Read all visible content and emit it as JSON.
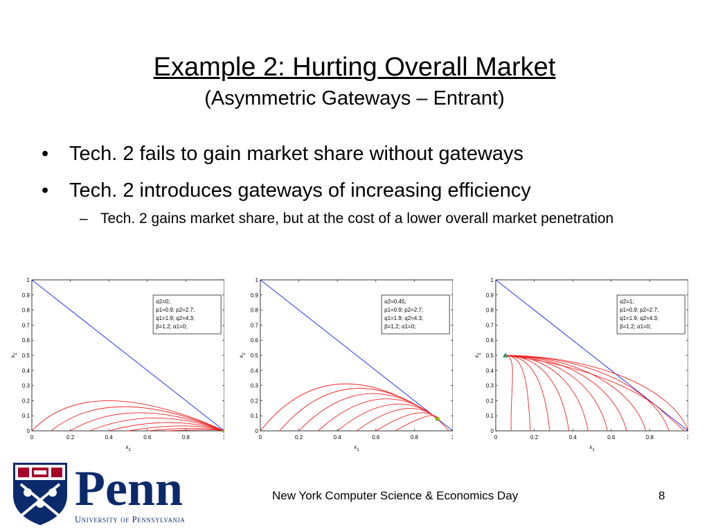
{
  "slide": {
    "title": "Example 2: Hurting Overall Market",
    "subtitle": "(Asymmetric Gateways – Entrant)",
    "bullets": [
      "Tech. 2 fails to gain market share without gateways",
      "Tech. 2 introduces gateways of increasing efficiency"
    ],
    "sub_bullet": "Tech. 2 gains market share, but at the cost of a lower overall market penetration",
    "bullet_mark": "•",
    "dash_mark": "–",
    "footer": "New York Computer Science & Economics Day",
    "page_number": "8"
  },
  "logo": {
    "wordmark": "Penn",
    "tagline": "University of Pennsylvania"
  },
  "chart_data": [
    {
      "type": "line",
      "xlabel": "x1",
      "ylabel": "x2",
      "xlim": [
        0,
        1
      ],
      "ylim": [
        0,
        1
      ],
      "xticks": [
        "0",
        "0.2",
        "0.4",
        "0.6",
        "0.8",
        "1"
      ],
      "yticks": [
        "0",
        "0.1",
        "0.2",
        "0.3",
        "0.4",
        "0.5",
        "0.6",
        "0.7",
        "0.8",
        "0.9",
        "1"
      ],
      "legend": [
        "α2=0;",
        "p1=0.9; p2=2.7;",
        "q1=1.9; q2=4.3;",
        "β=1.2; α1=0;"
      ],
      "boundary_line": [
        [
          0,
          1
        ],
        [
          1,
          0
        ]
      ],
      "equilibrium": [
        1.0,
        0.0
      ],
      "trajectories": [
        {
          "start": 0.0,
          "peak": [
            0.4,
            0.2
          ]
        },
        {
          "start": 0.1,
          "peak": [
            0.48,
            0.16
          ]
        },
        {
          "start": 0.2,
          "peak": [
            0.56,
            0.12
          ]
        },
        {
          "start": 0.3,
          "peak": [
            0.64,
            0.085
          ]
        },
        {
          "start": 0.4,
          "peak": [
            0.71,
            0.055
          ]
        },
        {
          "start": 0.5,
          "peak": [
            0.78,
            0.033
          ]
        },
        {
          "start": 0.6,
          "peak": [
            0.84,
            0.017
          ]
        },
        {
          "start": 0.7,
          "peak": [
            0.9,
            0.007
          ]
        }
      ]
    },
    {
      "type": "line",
      "xlabel": "x1",
      "ylabel": "x2",
      "xlim": [
        0,
        1
      ],
      "ylim": [
        0,
        1
      ],
      "xticks": [
        "0",
        "0.2",
        "0.4",
        "0.6",
        "0.8",
        "1"
      ],
      "yticks": [
        "0",
        "0.1",
        "0.2",
        "0.3",
        "0.4",
        "0.5",
        "0.6",
        "0.7",
        "0.8",
        "0.9",
        "1"
      ],
      "legend": [
        "α2=0.45;",
        "p1=0.9; p2=2.7;",
        "q1=1.9; q2=4.3;",
        "β=1.2; α1=0;"
      ],
      "boundary_line": [
        [
          0,
          1
        ],
        [
          1,
          0
        ]
      ],
      "equilibrium": [
        0.92,
        0.08
      ],
      "trajectories": [
        {
          "start": 0.0,
          "peak": [
            0.41,
            0.31
          ]
        },
        {
          "start": 0.1,
          "peak": [
            0.48,
            0.28
          ]
        },
        {
          "start": 0.2,
          "peak": [
            0.55,
            0.245
          ]
        },
        {
          "start": 0.3,
          "peak": [
            0.62,
            0.21
          ]
        },
        {
          "start": 0.4,
          "peak": [
            0.68,
            0.175
          ]
        },
        {
          "start": 0.5,
          "peak": [
            0.74,
            0.145
          ]
        },
        {
          "start": 0.6,
          "peak": [
            0.8,
            0.115
          ]
        },
        {
          "start": 0.7,
          "peak": [
            0.86,
            0.095
          ]
        }
      ]
    },
    {
      "type": "line",
      "xlabel": "x1",
      "ylabel": "x2",
      "xlim": [
        0,
        1
      ],
      "ylim": [
        0,
        1
      ],
      "xticks": [
        "0",
        "0.2",
        "0.4",
        "0.6",
        "0.8",
        "1"
      ],
      "yticks": [
        "0",
        "0.1",
        "0.2",
        "0.3",
        "0.4",
        "0.5",
        "0.6",
        "0.7",
        "0.8",
        "0.9",
        "1"
      ],
      "legend": [
        "α2=1;",
        "p1=0.9; p2=2.7;",
        "q1=1.9; q2=4.3;",
        "β=1.2; α1=0;"
      ],
      "boundary_line": [
        [
          0,
          1
        ],
        [
          1,
          0
        ]
      ],
      "equilibrium": [
        0.05,
        0.5
      ],
      "fan_ends": [
        0.08,
        0.18,
        0.28,
        0.38,
        0.48,
        0.58,
        0.68,
        0.78,
        0.9,
        1.0
      ]
    }
  ]
}
